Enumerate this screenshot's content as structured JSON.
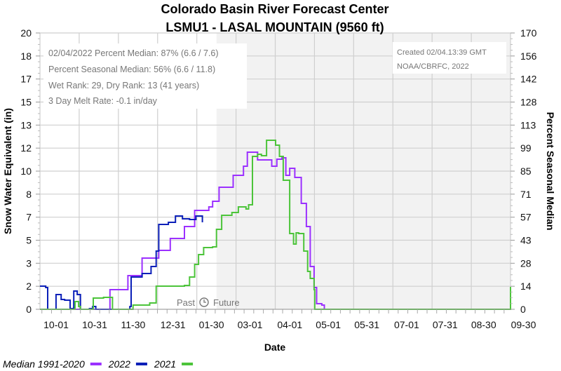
{
  "chart_data": {
    "type": "line",
    "title": "Colorado Basin River Forecast Center",
    "subtitle": "LSMU1 - LASAL MOUNTAIN (9560 ft)",
    "xlabel": "Date",
    "ylabel": "Snow Water Equivalent (in)",
    "ylabel_right": "Percent Seasonal Median",
    "x_units": "days since 10-01",
    "xlim": [
      -11.5,
      355
    ],
    "ylim": [
      0,
      19.7
    ],
    "x_ticks": [
      {
        "day": 0,
        "label": "10-01"
      },
      {
        "day": 30,
        "label": "10-31"
      },
      {
        "day": 60,
        "label": "11-30"
      },
      {
        "day": 91,
        "label": "12-31"
      },
      {
        "day": 121,
        "label": "01-30"
      },
      {
        "day": 151,
        "label": "03-01"
      },
      {
        "day": 182,
        "label": "04-01"
      },
      {
        "day": 212,
        "label": "05-01"
      },
      {
        "day": 242,
        "label": "05-31"
      },
      {
        "day": 273,
        "label": "07-01"
      },
      {
        "day": 303,
        "label": "07-31"
      },
      {
        "day": 333,
        "label": "08-30"
      },
      {
        "day": 364,
        "label": "09-30"
      }
    ],
    "y_ticks_left": [
      "0",
      "2",
      "3",
      "5",
      "7",
      "8",
      "10",
      "12",
      "13",
      "15",
      "17",
      "18",
      "20"
    ],
    "y_ticks_right": [
      "0",
      "14",
      "28",
      "43",
      "57",
      "71",
      "85",
      "99",
      "113",
      "128",
      "142",
      "156",
      "170"
    ],
    "grid": true,
    "today_day": 126,
    "past_label": "Past",
    "future_label": "Future",
    "info_lines": [
      "02/04/2022 Percent Median: 87% (6.6 / 7.6)",
      "Percent Seasonal Median: 56% (6.6 / 11.8)",
      "Wet Rank: 29, Dry Rank: 13  (41 years)",
      "3 Day Melt Rate: -0.1 in/day"
    ],
    "credit_lines": [
      "Created 02/04.13:39 GMT",
      "NOAA/CBRFC, 2022"
    ],
    "legend_position": "bottom-left",
    "series": [
      {
        "name": "Median 1991-2020",
        "color": "#9b30ff",
        "points": [
          [
            -11.5,
            0
          ],
          [
            28,
            0
          ],
          [
            43,
            1.4
          ],
          [
            57,
            2.4
          ],
          [
            68,
            3.65
          ],
          [
            81,
            4.2
          ],
          [
            90,
            5.05
          ],
          [
            101,
            5.9
          ],
          [
            109,
            7.05
          ],
          [
            120,
            7.3
          ],
          [
            123,
            7.7
          ],
          [
            128,
            8.7
          ],
          [
            139,
            9.55
          ],
          [
            147,
            10.2
          ],
          [
            150,
            11.2
          ],
          [
            154,
            11.2
          ],
          [
            158,
            10.65
          ],
          [
            167,
            10.65
          ],
          [
            169,
            10.2
          ],
          [
            173,
            10.7
          ],
          [
            177,
            10.8
          ],
          [
            180,
            9.55
          ],
          [
            183,
            10.05
          ],
          [
            187,
            9.4
          ],
          [
            192,
            7.55
          ],
          [
            196,
            5.9
          ],
          [
            199,
            3.05
          ],
          [
            202,
            1.55
          ],
          [
            204,
            0.4
          ],
          [
            208,
            0.3
          ],
          [
            210,
            0
          ],
          [
            355,
            0
          ]
        ]
      },
      {
        "name": "2022",
        "color": "#0a1fb8",
        "points": [
          [
            -11.5,
            1.65
          ],
          [
            -7,
            1.55
          ],
          [
            -5.5,
            0
          ],
          [
            -1.6,
            0
          ],
          [
            1,
            1.05
          ],
          [
            5,
            0.7
          ],
          [
            7.7,
            0.65
          ],
          [
            12,
            0.05
          ],
          [
            14.8,
            1.3
          ],
          [
            17.5,
            1.05
          ],
          [
            20,
            0
          ],
          [
            27,
            0.05
          ],
          [
            29.5,
            0.2
          ],
          [
            32,
            0
          ],
          [
            56,
            0
          ],
          [
            58.5,
            0.2
          ],
          [
            59.5,
            2.3
          ],
          [
            68,
            2.55
          ],
          [
            75,
            3.05
          ],
          [
            79,
            4.15
          ],
          [
            81,
            6.05
          ],
          [
            88.5,
            6.2
          ],
          [
            94,
            6.65
          ],
          [
            99.5,
            6.45
          ],
          [
            105,
            6.4
          ],
          [
            110,
            6.65
          ],
          [
            115,
            6.2
          ]
        ]
      },
      {
        "name": "2021",
        "color": "#4cc43a",
        "points": [
          [
            -11.5,
            0
          ],
          [
            14,
            0
          ],
          [
            15.8,
            0.55
          ],
          [
            18.6,
            0.2
          ],
          [
            20,
            0
          ],
          [
            28.4,
            0
          ],
          [
            30,
            0.8
          ],
          [
            38,
            0.85
          ],
          [
            45,
            0
          ],
          [
            56,
            0
          ],
          [
            61,
            0.3
          ],
          [
            74,
            0.45
          ],
          [
            79,
            1.65
          ],
          [
            101,
            1.7
          ],
          [
            105,
            2.3
          ],
          [
            109,
            3.2
          ],
          [
            112,
            3.9
          ],
          [
            116,
            4.4
          ],
          [
            123,
            4.45
          ],
          [
            126,
            5.7
          ],
          [
            130,
            6.7
          ],
          [
            138,
            6.9
          ],
          [
            143,
            7.3
          ],
          [
            149,
            7.15
          ],
          [
            151,
            7.45
          ],
          [
            154,
            10.9
          ],
          [
            158,
            11.05
          ],
          [
            161,
            10.95
          ],
          [
            165,
            12.05
          ],
          [
            172,
            11.7
          ],
          [
            175,
            10.9
          ],
          [
            178,
            9.2
          ],
          [
            183,
            5.4
          ],
          [
            186,
            4.65
          ],
          [
            188,
            5.45
          ],
          [
            190,
            5.4
          ],
          [
            194,
            4.15
          ],
          [
            197,
            2.7
          ],
          [
            199,
            2.2
          ],
          [
            202,
            1.4
          ],
          [
            202.5,
            0
          ],
          [
            353.5,
            0
          ],
          [
            355,
            1.6
          ]
        ]
      }
    ]
  },
  "colors": {
    "future_shade": "#f2f2f2",
    "grid": "#cfcfcf"
  }
}
